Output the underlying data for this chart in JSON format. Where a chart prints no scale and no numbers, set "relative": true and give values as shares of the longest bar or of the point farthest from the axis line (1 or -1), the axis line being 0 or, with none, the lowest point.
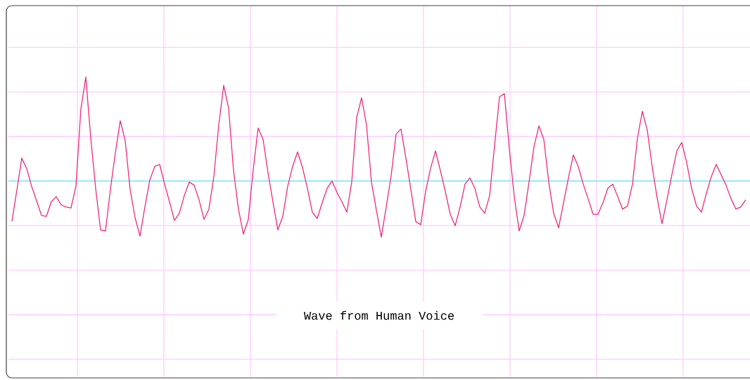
{
  "chart_data": {
    "type": "line",
    "title": "Wave from Human Voice",
    "relative": true,
    "grid": true,
    "ref_lines": [
      {
        "axis": "y",
        "value": 0,
        "color": "#88e4fa"
      }
    ],
    "categories": [
      null,
      null,
      null,
      null,
      null,
      null,
      null,
      null,
      null,
      null,
      null,
      null,
      null,
      null,
      null,
      null,
      null,
      null,
      null,
      null,
      null,
      null,
      null,
      null,
      null,
      null,
      null,
      null,
      null,
      null,
      null,
      null,
      null,
      null,
      null,
      null,
      null,
      null,
      null,
      null,
      null,
      null,
      null,
      null,
      null,
      null,
      null,
      null,
      null,
      null,
      null,
      null,
      null,
      null,
      null,
      null,
      null,
      null,
      null,
      null,
      null,
      null,
      null,
      null,
      null,
      null,
      null,
      null,
      null,
      null,
      null,
      null,
      null,
      null,
      null,
      null,
      null,
      null,
      null,
      null,
      null,
      null,
      null,
      null,
      null,
      null,
      null,
      null,
      null,
      null,
      null,
      null,
      null,
      null,
      null,
      null,
      null,
      null,
      null,
      null,
      null,
      null,
      null,
      null,
      null,
      null,
      null,
      null,
      null,
      null,
      null,
      null,
      null,
      null,
      null,
      null,
      null,
      null,
      null,
      null,
      null,
      null,
      null,
      null,
      null,
      null,
      null,
      null,
      null,
      null,
      null,
      null,
      null,
      null,
      null,
      null,
      null,
      null,
      null,
      null,
      null,
      null,
      null,
      null,
      null,
      null,
      null,
      null,
      null,
      null
    ],
    "series": [
      {
        "color": "#ee2a7b",
        "values": [
          -0.39,
          -0.09,
          0.22,
          0.12,
          -0.05,
          -0.19,
          -0.33,
          -0.34,
          -0.2,
          -0.15,
          -0.23,
          -0.25,
          -0.26,
          -0.05,
          0.69,
          1.0,
          0.42,
          -0.07,
          -0.47,
          -0.48,
          -0.08,
          0.27,
          0.58,
          0.39,
          -0.08,
          -0.35,
          -0.53,
          -0.25,
          0.01,
          0.14,
          0.16,
          -0.03,
          -0.2,
          -0.38,
          -0.31,
          -0.14,
          -0.01,
          -0.04,
          -0.18,
          -0.37,
          -0.27,
          0.04,
          0.54,
          0.92,
          0.7,
          0.1,
          -0.27,
          -0.51,
          -0.37,
          0.11,
          0.51,
          0.4,
          0.08,
          -0.2,
          -0.47,
          -0.34,
          -0.05,
          0.14,
          0.28,
          0.13,
          -0.07,
          -0.3,
          -0.36,
          -0.21,
          -0.07,
          0.0,
          -0.11,
          -0.2,
          -0.3,
          -0.01,
          0.61,
          0.8,
          0.54,
          -0.01,
          -0.28,
          -0.54,
          -0.25,
          0.05,
          0.45,
          0.5,
          0.22,
          -0.08,
          -0.39,
          -0.42,
          -0.1,
          0.12,
          0.29,
          0.1,
          -0.1,
          -0.32,
          -0.43,
          -0.25,
          -0.03,
          0.03,
          -0.07,
          -0.25,
          -0.31,
          -0.14,
          0.34,
          0.81,
          0.84,
          0.31,
          -0.15,
          -0.48,
          -0.33,
          -0.01,
          0.33,
          0.53,
          0.4,
          -0.01,
          -0.31,
          -0.45,
          -0.21,
          0.03,
          0.25,
          0.14,
          -0.03,
          -0.17,
          -0.32,
          -0.32,
          -0.21,
          -0.07,
          -0.03,
          -0.15,
          -0.27,
          -0.24,
          -0.03,
          0.41,
          0.67,
          0.49,
          0.14,
          -0.16,
          -0.41,
          -0.18,
          0.06,
          0.29,
          0.37,
          0.18,
          -0.07,
          -0.24,
          -0.3,
          -0.12,
          0.04,
          0.16,
          0.06,
          -0.04,
          -0.17,
          -0.27,
          -0.25,
          -0.18
        ]
      }
    ]
  }
}
